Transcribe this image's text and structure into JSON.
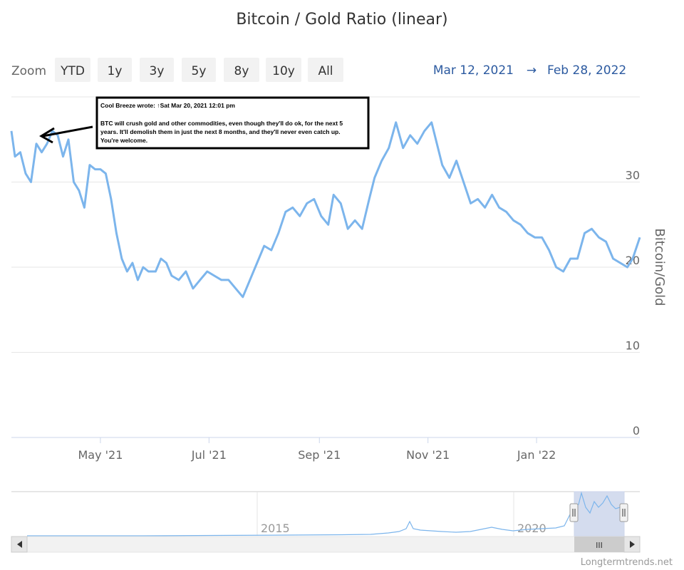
{
  "title": "Bitcoin / Gold Ratio (linear)",
  "zoom": {
    "label": "Zoom",
    "buttons": [
      "YTD",
      "1y",
      "3y",
      "5y",
      "8y",
      "10y",
      "All"
    ]
  },
  "range": {
    "from": "Mar 12, 2021",
    "arrow": "→",
    "to": "Feb 28, 2022"
  },
  "credit": "Longtermtrends.net",
  "annotation": {
    "header": "Cool Breeze wrote: ↑Sat Mar 20, 2021 12:01 pm",
    "lines": [
      "BTC will crush gold and other commodities, even though they'll do ok, for the next 5",
      "years. It'll demolish them in just the next 8 months, and they'll never even catch up.",
      "You're welcome."
    ]
  },
  "navigator": {
    "labels": [
      "2015",
      "2020"
    ],
    "scroll_grip": "III"
  },
  "colors": {
    "series": "#7cb5ec",
    "nav_mask": "#ccd6eb",
    "range_text": "#2c5aa0"
  },
  "chart_data": {
    "type": "line",
    "ylabel": "Bitcoin/Gold",
    "ylim": [
      0,
      40
    ],
    "yticks": [
      0,
      10,
      20,
      30
    ],
    "xticks": [
      "May '21",
      "Jul '21",
      "Sep '21",
      "Nov '21",
      "Jan '22"
    ],
    "xtick_dates": [
      "2021-05-01",
      "2021-07-01",
      "2021-09-01",
      "2021-11-01",
      "2022-01-01"
    ],
    "x_range": [
      "2021-03-12",
      "2022-02-28"
    ],
    "series": [
      {
        "x": [
          "2021-03-12",
          "2021-03-14",
          "2021-03-17",
          "2021-03-20",
          "2021-03-23",
          "2021-03-26",
          "2021-03-29",
          "2021-04-01",
          "2021-04-04",
          "2021-04-07",
          "2021-04-10",
          "2021-04-13",
          "2021-04-16",
          "2021-04-19",
          "2021-04-22",
          "2021-04-25",
          "2021-04-28",
          "2021-05-01",
          "2021-05-04",
          "2021-05-07",
          "2021-05-10",
          "2021-05-13",
          "2021-05-16",
          "2021-05-19",
          "2021-05-22",
          "2021-05-25",
          "2021-05-28",
          "2021-06-01",
          "2021-06-04",
          "2021-06-07",
          "2021-06-10",
          "2021-06-14",
          "2021-06-18",
          "2021-06-22",
          "2021-06-26",
          "2021-06-30",
          "2021-07-04",
          "2021-07-08",
          "2021-07-12",
          "2021-07-16",
          "2021-07-20",
          "2021-07-24",
          "2021-07-28",
          "2021-08-01",
          "2021-08-05",
          "2021-08-09",
          "2021-08-13",
          "2021-08-17",
          "2021-08-21",
          "2021-08-25",
          "2021-08-29",
          "2021-09-02",
          "2021-09-06",
          "2021-09-09",
          "2021-09-13",
          "2021-09-17",
          "2021-09-21",
          "2021-09-25",
          "2021-09-29",
          "2021-10-02",
          "2021-10-06",
          "2021-10-10",
          "2021-10-14",
          "2021-10-18",
          "2021-10-22",
          "2021-10-26",
          "2021-10-30",
          "2021-11-03",
          "2021-11-06",
          "2021-11-09",
          "2021-11-13",
          "2021-11-17",
          "2021-11-21",
          "2021-11-25",
          "2021-11-29",
          "2021-12-03",
          "2021-12-07",
          "2021-12-11",
          "2021-12-15",
          "2021-12-19",
          "2021-12-23",
          "2021-12-27",
          "2021-12-31",
          "2022-01-04",
          "2022-01-08",
          "2022-01-12",
          "2022-01-16",
          "2022-01-20",
          "2022-01-24",
          "2022-01-28",
          "2022-02-01",
          "2022-02-05",
          "2022-02-09",
          "2022-02-13",
          "2022-02-17",
          "2022-02-21",
          "2022-02-24",
          "2022-02-28"
        ],
        "y": [
          36.0,
          33.0,
          33.5,
          31.0,
          30.0,
          34.5,
          33.5,
          34.5,
          36.0,
          35.5,
          33.0,
          35.0,
          30.0,
          29.0,
          27.0,
          32.0,
          31.5,
          31.5,
          31.0,
          28.0,
          24.0,
          21.0,
          19.5,
          20.5,
          18.5,
          20.0,
          19.5,
          19.5,
          21.0,
          20.5,
          19.0,
          18.5,
          19.5,
          17.5,
          18.5,
          19.5,
          19.0,
          18.5,
          18.5,
          17.5,
          16.5,
          18.5,
          20.5,
          22.5,
          22.0,
          24.0,
          26.5,
          27.0,
          26.0,
          27.5,
          28.0,
          26.0,
          25.0,
          28.5,
          27.5,
          24.5,
          25.5,
          24.5,
          28.0,
          30.5,
          32.5,
          34.0,
          37.0,
          34.0,
          35.5,
          34.5,
          36.0,
          37.0,
          34.5,
          32.0,
          30.5,
          32.5,
          30.0,
          27.5,
          28.0,
          27.0,
          28.5,
          27.0,
          26.5,
          25.5,
          25.0,
          24.0,
          23.5,
          23.5,
          22.0,
          20.0,
          19.5,
          21.0,
          21.0,
          24.0,
          24.5,
          23.5,
          23.0,
          21.0,
          20.5,
          20.0,
          21.0,
          23.5
        ]
      }
    ]
  }
}
